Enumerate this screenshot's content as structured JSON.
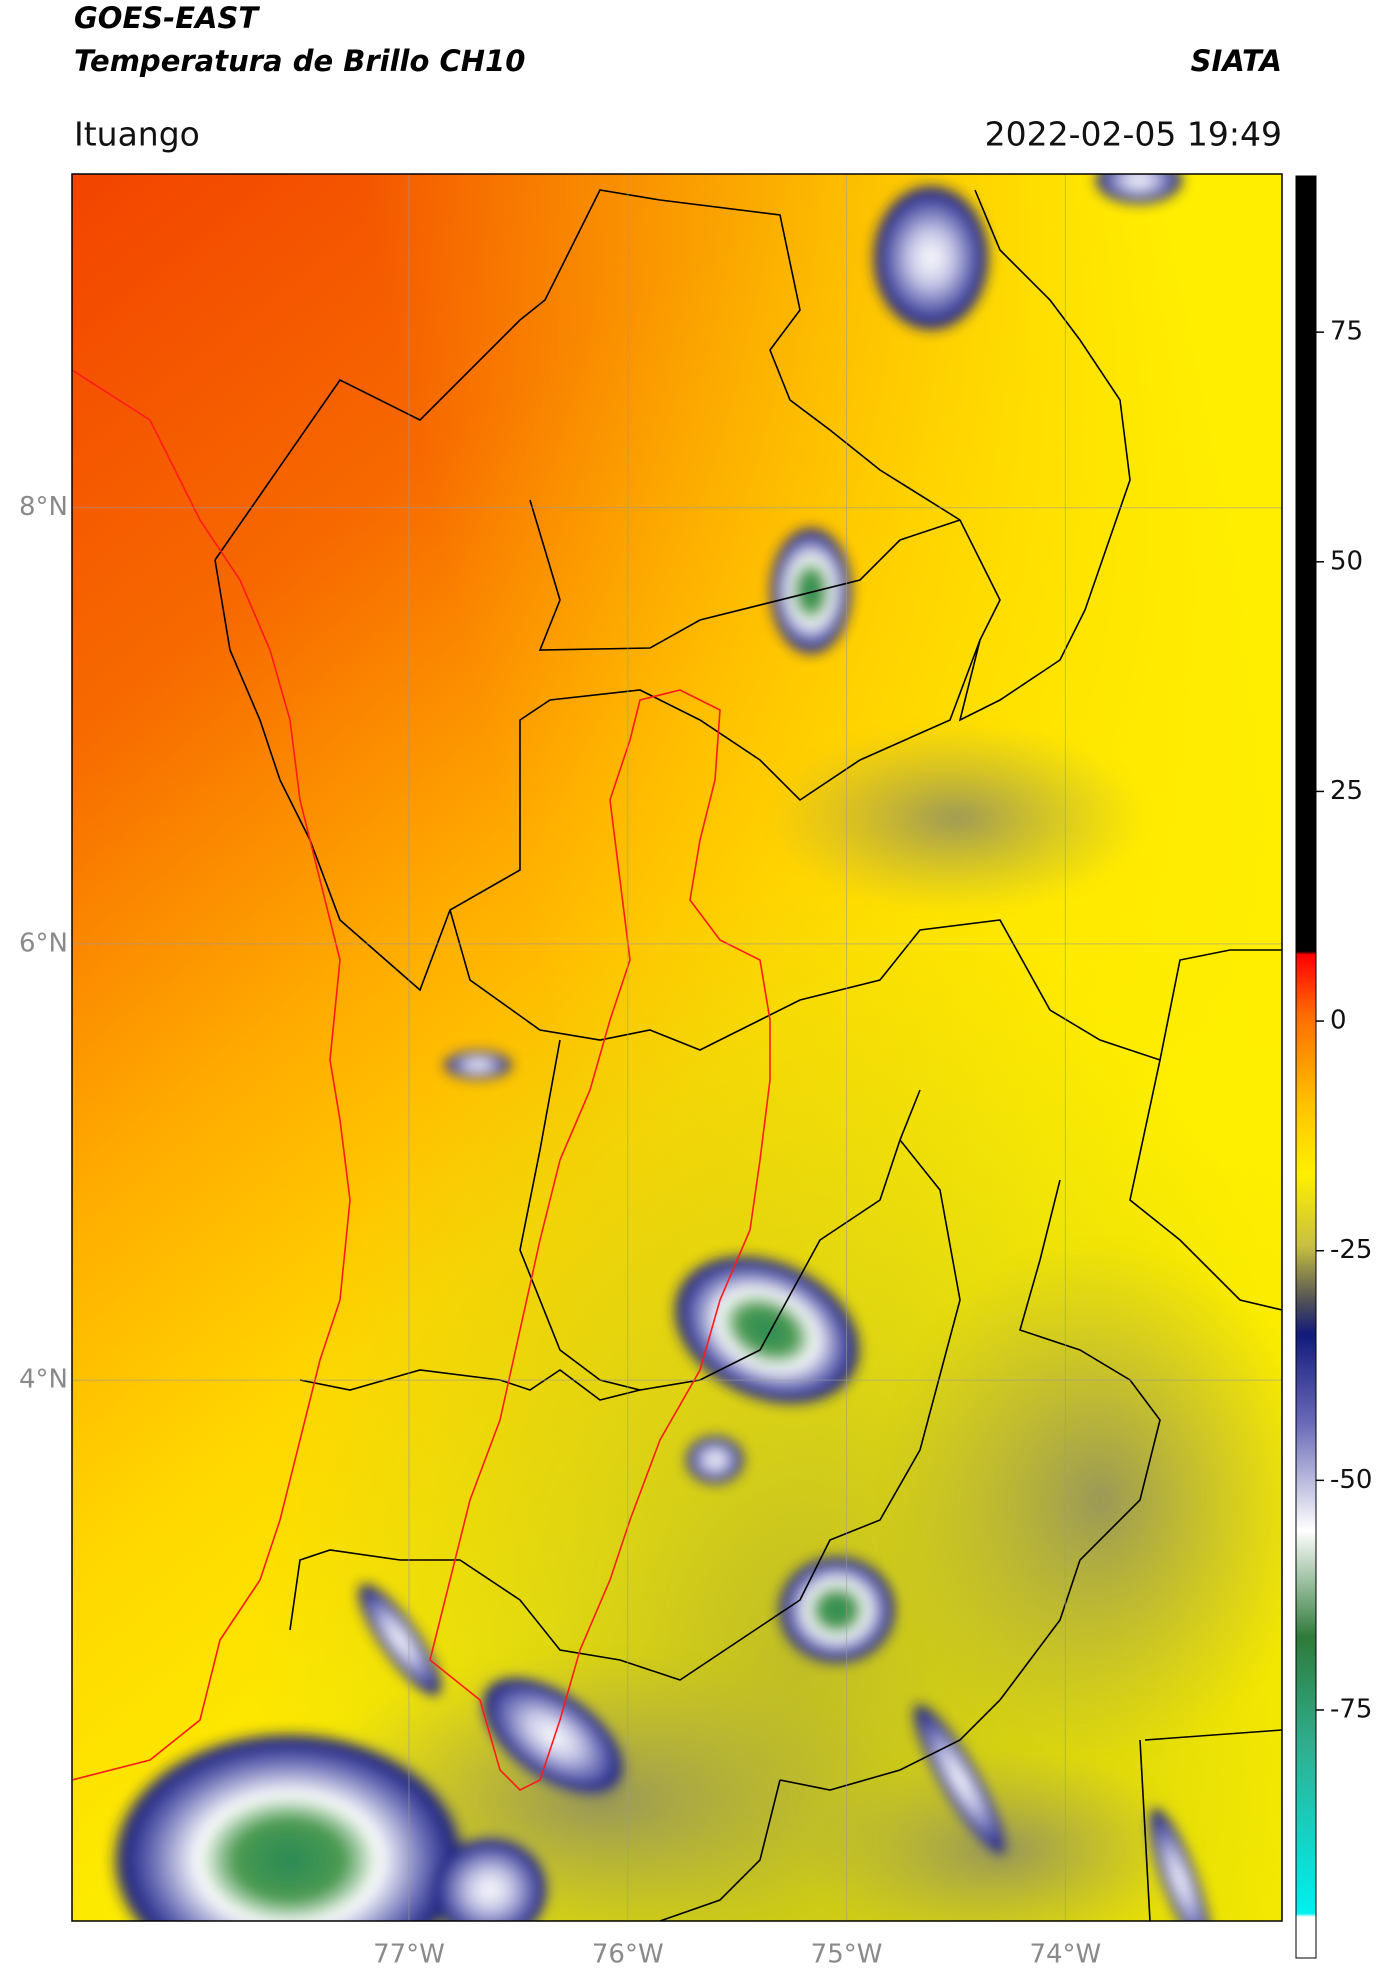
{
  "header": {
    "title_line1": "GOES-EAST",
    "title_line2": "Temperatura de Brillo CH10",
    "org": "SIATA",
    "location": "Ituango",
    "datetime": "2022-02-05 19:49"
  },
  "map": {
    "lat_lim": [
      1.52,
      9.53
    ],
    "lon_lim": [
      -78.54,
      -73.01
    ],
    "grid": true,
    "lat_ticks": [
      {
        "value": 8,
        "label": "8°N"
      },
      {
        "value": 6,
        "label": "6°N"
      },
      {
        "value": 4,
        "label": "4°N"
      }
    ],
    "lon_ticks": [
      {
        "value": -77,
        "label": "77°W"
      },
      {
        "value": -76,
        "label": "76°W"
      },
      {
        "value": -75,
        "label": "75°W"
      },
      {
        "value": -74,
        "label": "74°W"
      }
    ]
  },
  "colorbar": {
    "lim": [
      -102,
      92
    ],
    "ticks": [
      75,
      50,
      25,
      0,
      -25,
      -50,
      -75
    ]
  }
}
